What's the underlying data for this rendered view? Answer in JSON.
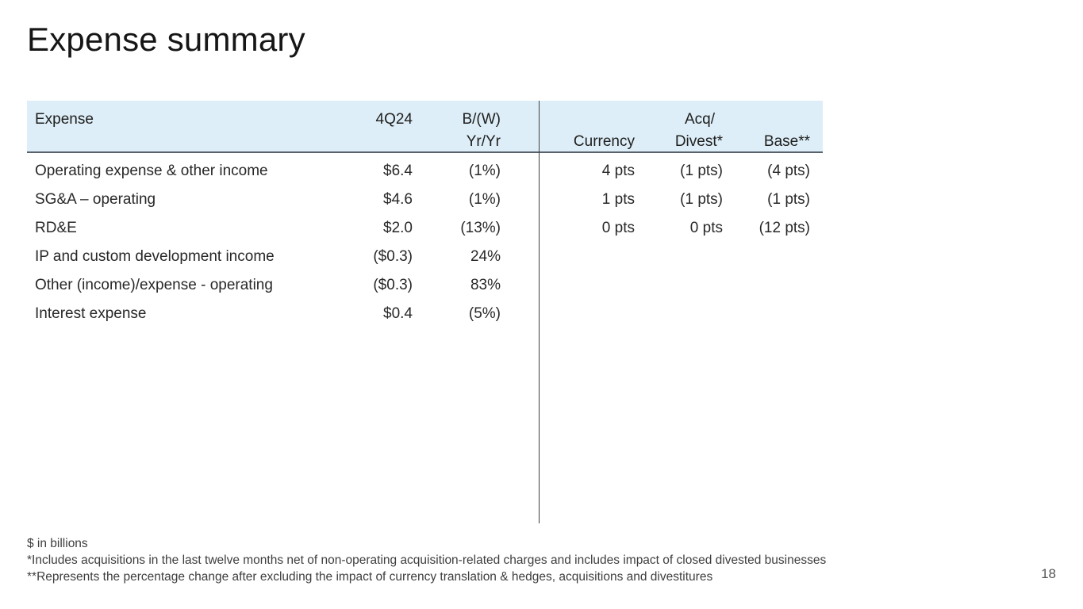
{
  "slide": {
    "title": "Expense summary",
    "page_number": "18"
  },
  "table": {
    "header": {
      "expense": "Expense",
      "q424": "4Q24",
      "bw_line1": "B/(W)",
      "bw_line2": "Yr/Yr",
      "currency": "Currency",
      "acq_line1": "Acq/",
      "acq_line2": "Divest*",
      "base": "Base**"
    },
    "rows": [
      {
        "expense": "Operating expense & other income",
        "q424": "$6.4",
        "bw": "(1%)",
        "currency": "4 pts",
        "acq": "(1 pts)",
        "base": "(4 pts)"
      },
      {
        "expense": "SG&A – operating",
        "q424": "$4.6",
        "bw": "(1%)",
        "currency": "1 pts",
        "acq": "(1 pts)",
        "base": "(1 pts)"
      },
      {
        "expense": "RD&E",
        "q424": "$2.0",
        "bw": "(13%)",
        "currency": "0 pts",
        "acq": "0 pts",
        "base": "(12 pts)"
      },
      {
        "expense": "IP and custom development income",
        "q424": "($0.3)",
        "bw": "24%",
        "currency": "",
        "acq": "",
        "base": ""
      },
      {
        "expense": "Other (income)/expense - operating",
        "q424": "($0.3)",
        "bw": "83%",
        "currency": "",
        "acq": "",
        "base": ""
      },
      {
        "expense": "Interest expense",
        "q424": "$0.4",
        "bw": "(5%)",
        "currency": "",
        "acq": "",
        "base": ""
      }
    ]
  },
  "footnotes": [
    "$ in billions",
    "*Includes acquisitions in the last twelve months net of non-operating acquisition-related charges and includes impact of closed divested businesses",
    "**Represents the percentage change after excluding the impact of currency translation & hedges, acquisitions and divestitures"
  ],
  "colors": {
    "header_band": "#ddeef8",
    "header_rule": "#59626b",
    "column_divider": "#3f3f3f",
    "body_text": "#282828",
    "footnote_text": "#3e3e3e"
  }
}
